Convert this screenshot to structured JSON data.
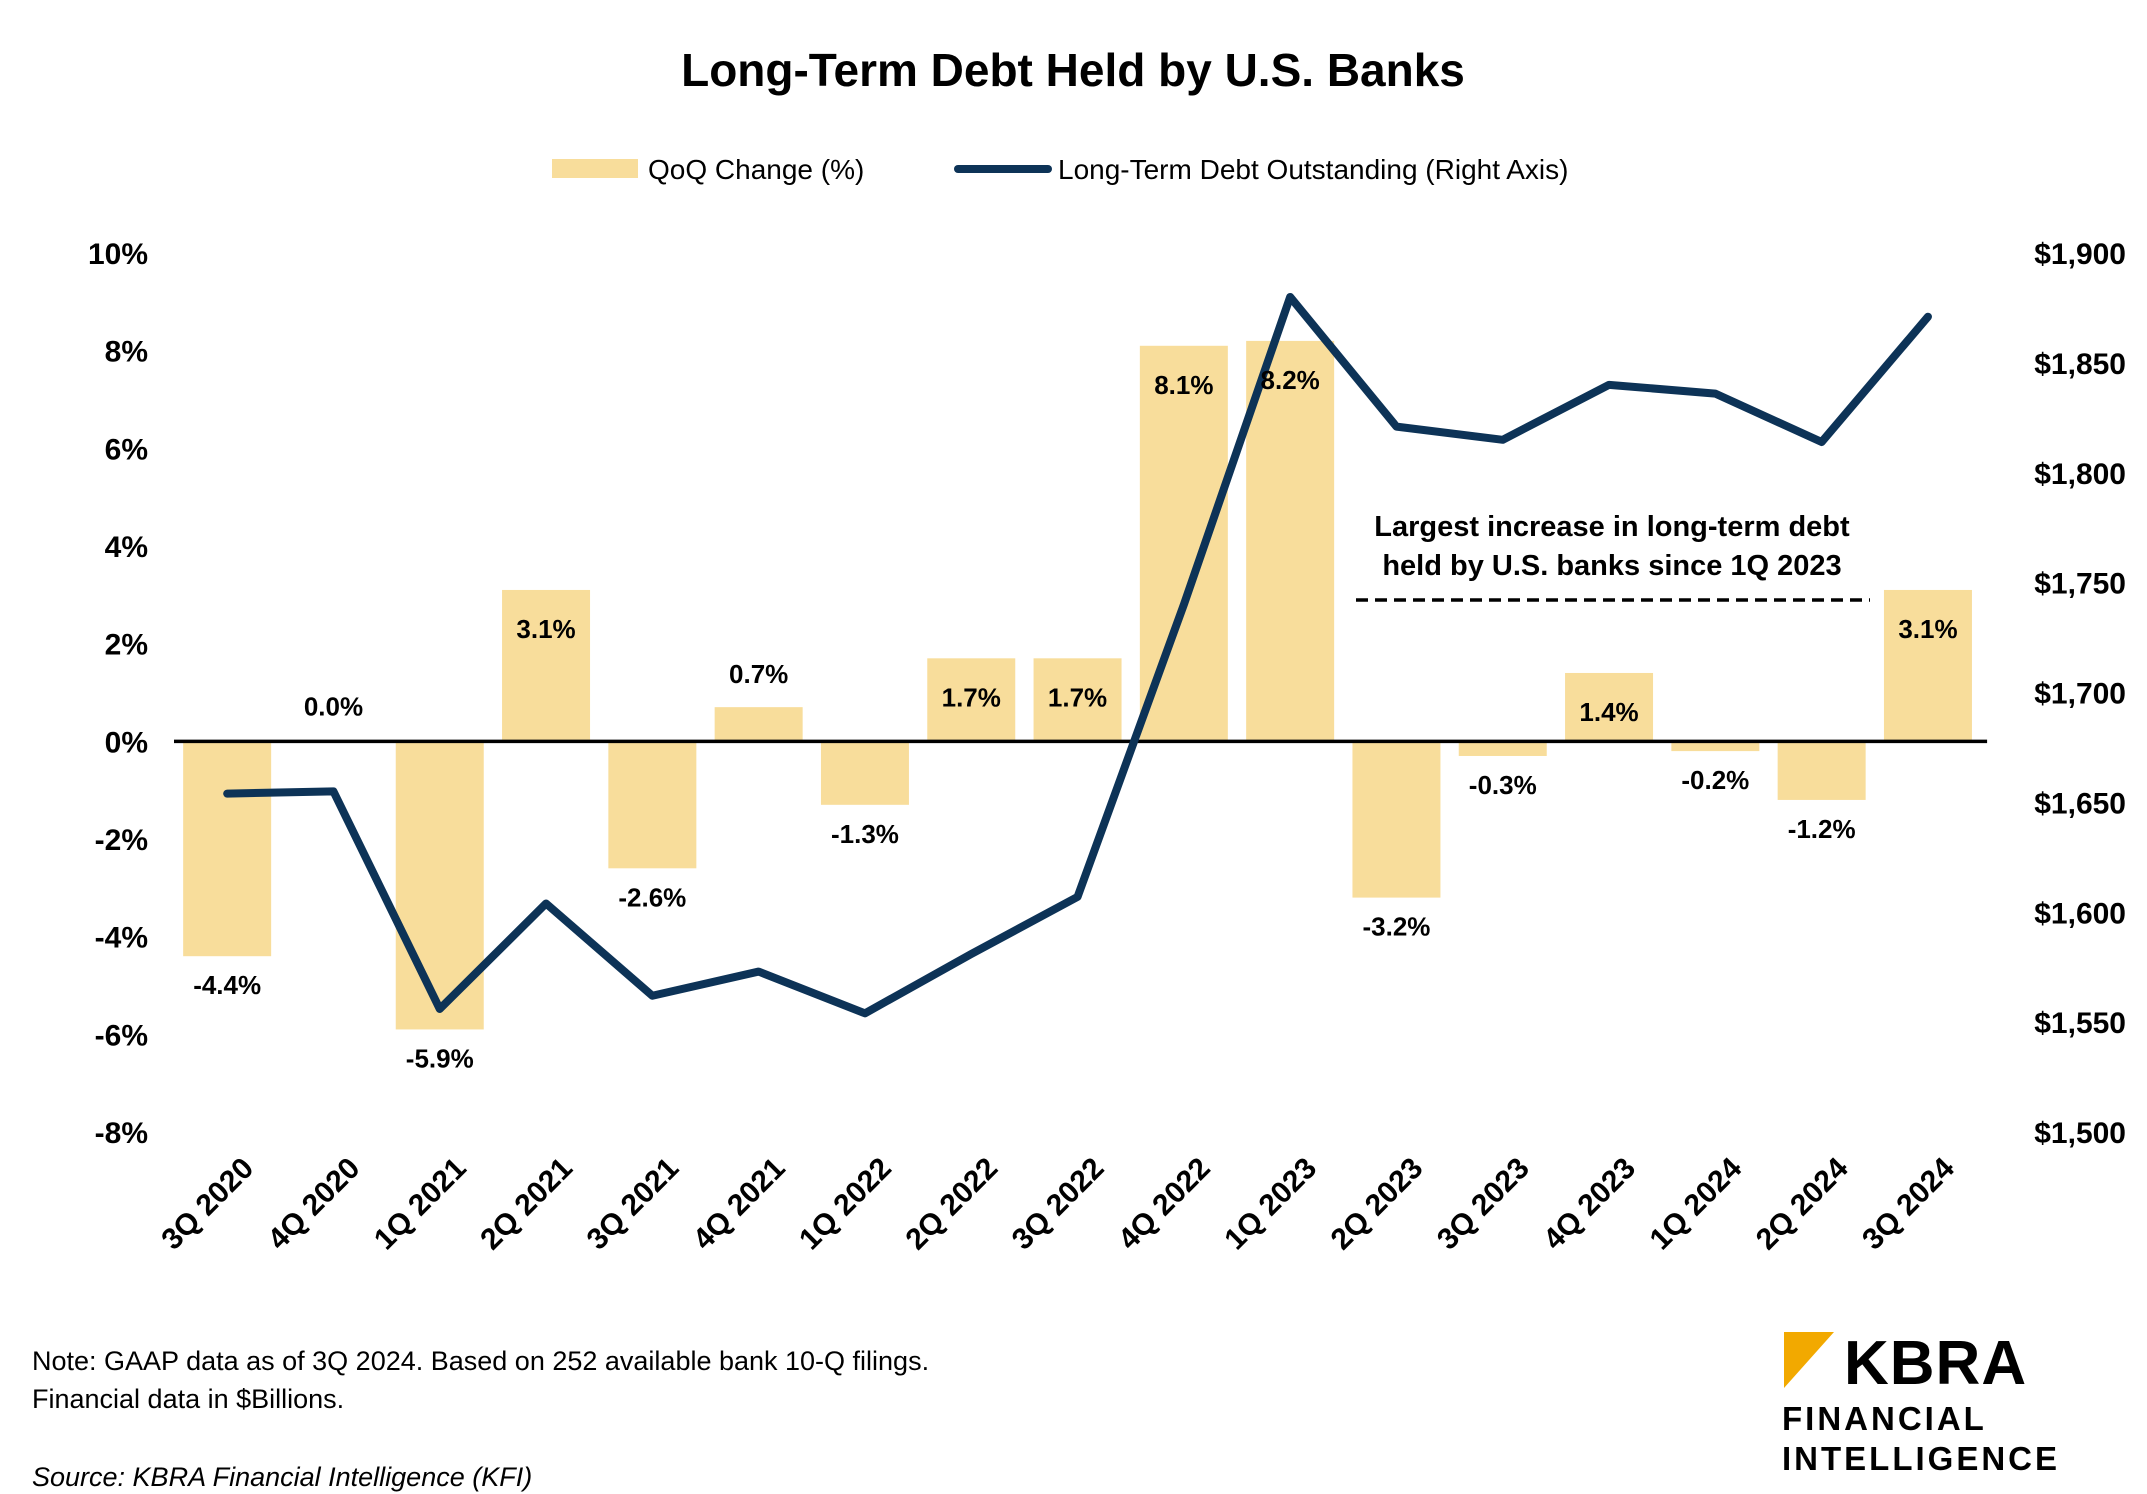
{
  "chart_data": {
    "type": "bar",
    "title": "Long-Term Debt Held by U.S. Banks",
    "categories": [
      "3Q 2020",
      "4Q 2020",
      "1Q 2021",
      "2Q 2021",
      "3Q 2021",
      "4Q 2021",
      "1Q 2022",
      "2Q 2022",
      "3Q 2022",
      "4Q 2022",
      "1Q 2023",
      "2Q 2023",
      "3Q 2023",
      "4Q 2023",
      "1Q 2024",
      "2Q 2024",
      "3Q 2024"
    ],
    "series": [
      {
        "name": "QoQ Change (%)",
        "type": "bar",
        "axis": "left",
        "color": "#F8DD9B",
        "values": [
          -4.4,
          0.0,
          -5.9,
          3.1,
          -2.6,
          0.7,
          -1.3,
          1.7,
          1.7,
          8.1,
          8.2,
          -3.2,
          -0.3,
          1.4,
          -0.2,
          -1.2,
          3.1
        ],
        "labels": [
          "-4.4%",
          "0.0%",
          "-5.9%",
          "3.1%",
          "-2.6%",
          "0.7%",
          "-1.3%",
          "1.7%",
          "1.7%",
          "8.1%",
          "8.2%",
          "-3.2%",
          "-0.3%",
          "1.4%",
          "-0.2%",
          "-1.2%",
          "3.1%"
        ]
      },
      {
        "name": "Long-Term Debt Outstanding (Right Axis)",
        "type": "line",
        "axis": "right",
        "color": "#0D3357",
        "values": [
          1654,
          1655,
          1556,
          1604,
          1562,
          1573,
          1554,
          1581,
          1607,
          1740,
          1880,
          1821,
          1815,
          1840,
          1836,
          1814,
          1871
        ]
      }
    ],
    "y_left": {
      "range": [
        -8,
        10
      ],
      "ticks": [
        "10%",
        "8%",
        "6%",
        "4%",
        "2%",
        "0%",
        "-2%",
        "-4%",
        "-6%",
        "-8%"
      ],
      "tick_values": [
        10,
        8,
        6,
        4,
        2,
        0,
        -2,
        -4,
        -6,
        -8
      ]
    },
    "y_right": {
      "range": [
        1500,
        1900
      ],
      "ticks": [
        "$1,900",
        "$1,850",
        "$1,800",
        "$1,750",
        "$1,700",
        "$1,650",
        "$1,600",
        "$1,550",
        "$1,500"
      ],
      "tick_values": [
        1900,
        1850,
        1800,
        1750,
        1700,
        1650,
        1600,
        1550,
        1500
      ]
    },
    "legend_position": "top-center",
    "annotation": {
      "lines": [
        "Largest increase in long-term debt",
        "held by U.S. banks since 1Q 2023"
      ]
    }
  },
  "footer": {
    "note_line1": "Note: GAAP data as of 3Q 2024. Based on 252 available bank 10-Q filings.",
    "note_line2": "Financial data in $Billions.",
    "source": "Source: KBRA Financial Intelligence (KFI)"
  },
  "logo": {
    "word": "KBRA",
    "line1": "FINANCIAL",
    "line2": "INTELLIGENCE",
    "accent_color": "#F2A900"
  }
}
